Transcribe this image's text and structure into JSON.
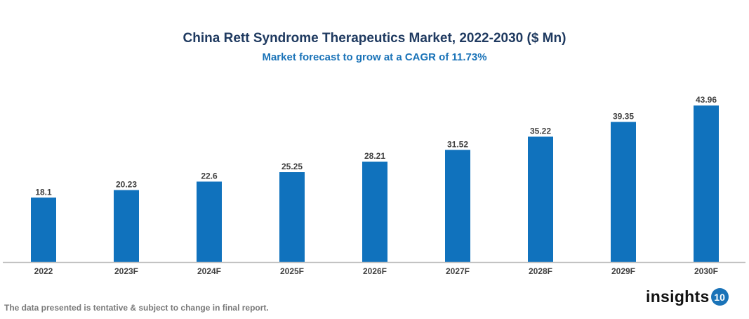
{
  "chart_data": {
    "type": "bar",
    "title": "China Rett Syndrome Therapeutics Market, 2022-2030 ($ Mn)",
    "subtitle": "Market forecast to grow at a CAGR of 11.73%",
    "categories": [
      "2022",
      "2023F",
      "2024F",
      "2025F",
      "2026F",
      "2027F",
      "2028F",
      "2029F",
      "2030F"
    ],
    "values": [
      18.1,
      20.23,
      22.6,
      25.25,
      28.21,
      31.52,
      35.22,
      39.35,
      43.96
    ],
    "xlabel": "",
    "ylabel": "",
    "ylim": [
      0,
      44
    ],
    "grid": false,
    "data_labels": true,
    "bar_color": "#1072bd"
  },
  "footer": {
    "note": "The data presented is tentative & subject to change in final report.",
    "logo_text": "insights",
    "logo_badge": "10"
  }
}
